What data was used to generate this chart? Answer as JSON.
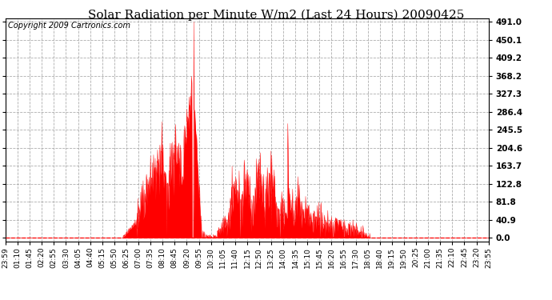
{
  "title": "Solar Radiation per Minute W/m2 (Last 24 Hours) 20090425",
  "copyright": "Copyright 2009 Cartronics.com",
  "yticks": [
    0.0,
    40.9,
    81.8,
    122.8,
    163.7,
    204.6,
    245.5,
    286.4,
    327.3,
    368.2,
    409.2,
    450.1,
    491.0
  ],
  "ymin": -8.0,
  "ymax": 500.0,
  "fill_color": "#FF0000",
  "line_color": "#FF0000",
  "background_color": "#FFFFFF",
  "plot_bg_color": "#FFFFFF",
  "grid_color": "#AAAAAA",
  "dashed_line_color": "#FF0000",
  "title_fontsize": 11,
  "copyright_fontsize": 7,
  "xtick_labels": [
    "23:59",
    "01:10",
    "01:45",
    "02:20",
    "02:55",
    "03:30",
    "04:05",
    "04:40",
    "05:15",
    "05:50",
    "06:25",
    "07:00",
    "07:35",
    "08:10",
    "08:45",
    "09:20",
    "09:55",
    "10:30",
    "11:05",
    "11:40",
    "12:15",
    "12:50",
    "13:25",
    "14:00",
    "14:35",
    "15:10",
    "15:45",
    "16:20",
    "16:55",
    "17:30",
    "18:05",
    "18:40",
    "19:15",
    "19:50",
    "20:25",
    "21:00",
    "21:35",
    "22:10",
    "22:45",
    "23:20",
    "23:55"
  ]
}
